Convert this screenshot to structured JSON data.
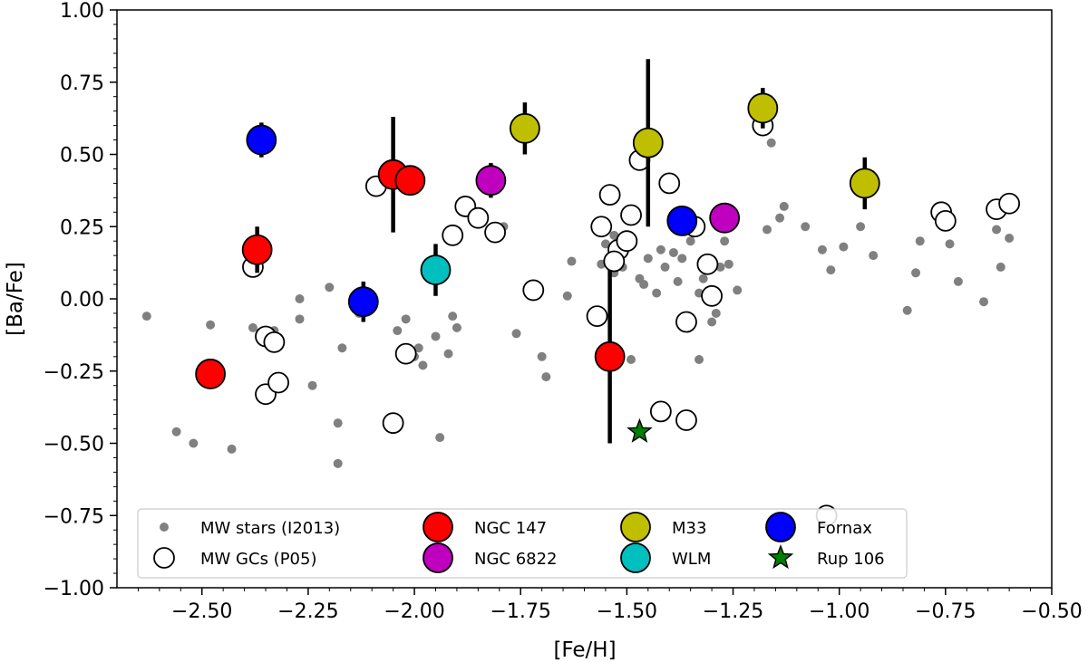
{
  "chart_data": {
    "type": "scatter",
    "xlabel": "[Fe/H]",
    "ylabel": "[Ba/Fe]",
    "xlim": [
      -2.7,
      -0.5
    ],
    "ylim": [
      -1.0,
      1.0
    ],
    "x_ticks": [
      -2.5,
      -2.25,
      -2.0,
      -1.75,
      -1.5,
      -1.25,
      -1.0,
      -0.75,
      -0.5
    ],
    "x_tick_labels": [
      "−2.50",
      "−2.25",
      "−2.00",
      "−1.75",
      "−1.50",
      "−1.25",
      "−1.00",
      "−0.75",
      "−0.50"
    ],
    "y_ticks": [
      -1.0,
      -0.75,
      -0.5,
      -0.25,
      0.0,
      0.25,
      0.5,
      0.75,
      1.0
    ],
    "y_tick_labels": [
      "−1.00",
      "−0.75",
      "−0.50",
      "−0.25",
      "0.00",
      "0.25",
      "0.50",
      "0.75",
      "1.00"
    ],
    "legend_position": "lower-left",
    "series": [
      {
        "name": "MW stars (I2013)",
        "marker": "small-dot",
        "color": "#808080",
        "points": [
          [
            -2.63,
            -0.06
          ],
          [
            -2.56,
            -0.46
          ],
          [
            -2.52,
            -0.5
          ],
          [
            -2.48,
            -0.09
          ],
          [
            -2.43,
            -0.52
          ],
          [
            -2.38,
            -0.1
          ],
          [
            -2.33,
            -0.11
          ],
          [
            -2.27,
            0.0
          ],
          [
            -2.27,
            -0.07
          ],
          [
            -2.24,
            -0.3
          ],
          [
            -2.2,
            0.04
          ],
          [
            -2.18,
            -0.43
          ],
          [
            -2.18,
            -0.57
          ],
          [
            -2.17,
            -0.17
          ],
          [
            -2.13,
            -0.05
          ],
          [
            -2.04,
            -0.11
          ],
          [
            -2.02,
            -0.07
          ],
          [
            -2.0,
            -0.2
          ],
          [
            -1.99,
            -0.17
          ],
          [
            -1.98,
            -0.23
          ],
          [
            -1.95,
            -0.13
          ],
          [
            -1.94,
            -0.48
          ],
          [
            -1.92,
            -0.19
          ],
          [
            -1.91,
            -0.06
          ],
          [
            -1.9,
            -0.1
          ],
          [
            -1.79,
            0.25
          ],
          [
            -1.76,
            -0.12
          ],
          [
            -1.72,
            0.03
          ],
          [
            -1.7,
            -0.2
          ],
          [
            -1.69,
            -0.27
          ],
          [
            -1.64,
            0.01
          ],
          [
            -1.56,
            0.12
          ],
          [
            -1.55,
            0.19
          ],
          [
            -1.53,
            0.22
          ],
          [
            -1.51,
            0.11
          ],
          [
            -1.49,
            -0.21
          ],
          [
            -1.47,
            0.07
          ],
          [
            -1.46,
            0.05
          ],
          [
            -1.45,
            0.14
          ],
          [
            -1.43,
            0.02
          ],
          [
            -1.42,
            0.17
          ],
          [
            -1.41,
            0.11
          ],
          [
            -1.39,
            0.16
          ],
          [
            -1.38,
            0.06
          ],
          [
            -1.37,
            0.14
          ],
          [
            -1.35,
            0.2
          ],
          [
            -1.33,
            0.02
          ],
          [
            -1.32,
            0.07
          ],
          [
            -1.31,
            0.13
          ],
          [
            -1.3,
            -0.08
          ],
          [
            -1.29,
            -0.05
          ],
          [
            -1.28,
            0.11
          ],
          [
            -1.27,
            0.2
          ],
          [
            -1.26,
            0.12
          ],
          [
            -1.24,
            0.03
          ],
          [
            -1.25,
            0.29
          ],
          [
            -1.33,
            -0.21
          ],
          [
            -1.16,
            0.54
          ],
          [
            -1.17,
            0.24
          ],
          [
            -1.14,
            0.28
          ],
          [
            -1.13,
            0.32
          ],
          [
            -1.08,
            0.25
          ],
          [
            -1.04,
            0.17
          ],
          [
            -1.02,
            0.1
          ],
          [
            -0.99,
            0.18
          ],
          [
            -0.95,
            0.25
          ],
          [
            -0.92,
            0.15
          ],
          [
            -0.84,
            -0.04
          ],
          [
            -0.82,
            0.09
          ],
          [
            -0.81,
            0.2
          ],
          [
            -0.74,
            0.19
          ],
          [
            -0.72,
            0.06
          ],
          [
            -0.66,
            -0.01
          ],
          [
            -0.63,
            0.24
          ],
          [
            -0.62,
            0.11
          ],
          [
            -0.6,
            0.21
          ],
          [
            -1.63,
            0.13
          ],
          [
            -1.49,
            0.2
          ],
          [
            -1.86,
            0.28
          ],
          [
            -1.53,
            0.09
          ]
        ]
      },
      {
        "name": "MW GCs (P05)",
        "marker": "open-circle",
        "color": "#ffffff",
        "points": [
          [
            -2.38,
            0.11
          ],
          [
            -2.35,
            -0.13
          ],
          [
            -2.33,
            -0.15
          ],
          [
            -2.35,
            -0.33
          ],
          [
            -2.32,
            -0.29
          ],
          [
            -2.09,
            0.39
          ],
          [
            -2.05,
            -0.43
          ],
          [
            -2.02,
            -0.19
          ],
          [
            -1.91,
            0.22
          ],
          [
            -1.88,
            0.32
          ],
          [
            -1.85,
            0.28
          ],
          [
            -1.81,
            0.23
          ],
          [
            -1.72,
            0.03
          ],
          [
            -1.57,
            -0.06
          ],
          [
            -1.56,
            0.25
          ],
          [
            -1.54,
            0.36
          ],
          [
            -1.52,
            0.17
          ],
          [
            -1.5,
            0.2
          ],
          [
            -1.53,
            0.13
          ],
          [
            -1.49,
            0.29
          ],
          [
            -1.47,
            0.48
          ],
          [
            -1.4,
            0.4
          ],
          [
            -1.36,
            -0.08
          ],
          [
            -1.34,
            0.25
          ],
          [
            -1.31,
            0.12
          ],
          [
            -1.3,
            0.01
          ],
          [
            -1.42,
            -0.39
          ],
          [
            -1.36,
            -0.42
          ],
          [
            -1.18,
            0.6
          ],
          [
            -1.03,
            -0.75
          ],
          [
            -0.76,
            0.3
          ],
          [
            -0.75,
            0.27
          ],
          [
            -0.63,
            0.31
          ],
          [
            -0.6,
            0.33
          ]
        ]
      },
      {
        "name": "NGC 147",
        "marker": "filled-circle",
        "color": "#ff0000",
        "points": [
          {
            "x": -2.37,
            "y": 0.17,
            "err": 0.08
          },
          {
            "x": -2.05,
            "y": 0.43,
            "err": 0.2
          },
          {
            "x": -2.01,
            "y": 0.41,
            "err": 0.0
          },
          {
            "x": -2.48,
            "y": -0.26,
            "err": 0.0
          },
          {
            "x": -1.54,
            "y": -0.2,
            "err": 0.3
          }
        ]
      },
      {
        "name": "NGC 6822",
        "marker": "filled-circle",
        "color": "#bf00bf",
        "points": [
          {
            "x": -1.82,
            "y": 0.41,
            "err": 0.06
          },
          {
            "x": -1.27,
            "y": 0.28,
            "err": 0.0
          }
        ]
      },
      {
        "name": "M33",
        "marker": "filled-circle",
        "color": "#bfbf00",
        "points": [
          {
            "x": -1.74,
            "y": 0.59,
            "err": 0.09
          },
          {
            "x": -1.45,
            "y": 0.54,
            "err": 0.29
          },
          {
            "x": -1.18,
            "y": 0.66,
            "err": 0.07
          },
          {
            "x": -0.94,
            "y": 0.4,
            "err": 0.09
          }
        ]
      },
      {
        "name": "WLM",
        "marker": "filled-circle",
        "color": "#00bfbf",
        "points": [
          {
            "x": -1.95,
            "y": 0.1,
            "err": 0.09
          }
        ]
      },
      {
        "name": "Fornax",
        "marker": "filled-circle",
        "color": "#0000ff",
        "points": [
          {
            "x": -2.36,
            "y": 0.55,
            "err": 0.06
          },
          {
            "x": -2.12,
            "y": -0.01,
            "err": 0.07
          },
          {
            "x": -1.37,
            "y": 0.27,
            "err": 0.0
          }
        ]
      },
      {
        "name": "Rup 106",
        "marker": "star",
        "color": "#008000",
        "points": [
          {
            "x": -1.47,
            "y": -0.46
          }
        ]
      }
    ]
  }
}
